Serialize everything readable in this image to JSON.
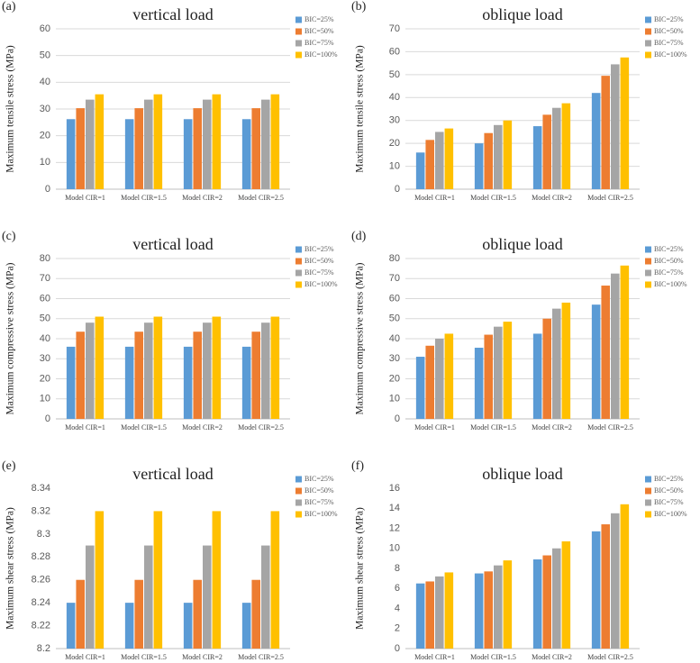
{
  "chart_data": [
    {
      "type": "bar",
      "panel_label": "(a)",
      "title": "vertical load",
      "y_label": "Maximum tensile stress (MPa)",
      "categories": [
        "Model CIR=1",
        "Model CIR=1.5",
        "Model CIR=2",
        "Model CIR=2.5"
      ],
      "series": [
        {
          "name": "BIC=25%",
          "color": "#5b9bd5",
          "values": [
            26.2,
            26.2,
            26.2,
            26.2
          ]
        },
        {
          "name": "BIC=50%",
          "color": "#ed7d31",
          "values": [
            30.3,
            30.3,
            30.3,
            30.3
          ]
        },
        {
          "name": "BIC=75%",
          "color": "#a5a5a5",
          "values": [
            33.5,
            33.5,
            33.5,
            33.5
          ]
        },
        {
          "name": "BIC=100%",
          "color": "#ffc000",
          "values": [
            35.5,
            35.5,
            35.5,
            35.5
          ]
        }
      ],
      "ylim": [
        0,
        60
      ],
      "yticks": [
        0,
        10,
        20,
        30,
        40,
        50,
        60
      ],
      "grid": true
    },
    {
      "type": "bar",
      "panel_label": "(b)",
      "title": "oblique load",
      "y_label": "Maximum tensile stress (MPa)",
      "categories": [
        "Model CIR=1",
        "Model CIR=1.5",
        "Model CIR=2",
        "Model CIR=2.5"
      ],
      "series": [
        {
          "name": "BIC=25%",
          "color": "#5b9bd5",
          "values": [
            16,
            20,
            27.5,
            42
          ]
        },
        {
          "name": "BIC=50%",
          "color": "#ed7d31",
          "values": [
            21.5,
            24.5,
            32.5,
            49.5
          ]
        },
        {
          "name": "BIC=75%",
          "color": "#a5a5a5",
          "values": [
            25,
            28,
            35.5,
            54.5
          ]
        },
        {
          "name": "BIC=100%",
          "color": "#ffc000",
          "values": [
            26.5,
            30,
            37.5,
            57.5
          ]
        }
      ],
      "ylim": [
        0,
        70
      ],
      "yticks": [
        0,
        10,
        20,
        30,
        40,
        50,
        60,
        70
      ],
      "grid": true
    },
    {
      "type": "bar",
      "panel_label": "(c)",
      "title": "vertical load",
      "y_label": "Maximum compressive  stress (MPa)",
      "categories": [
        "Model CIR=1",
        "Model CIR=1.5",
        "Model CIR=2",
        "Model CIR=2.5"
      ],
      "series": [
        {
          "name": "BIC=25%",
          "color": "#5b9bd5",
          "values": [
            36,
            36,
            36,
            36
          ]
        },
        {
          "name": "BIC=50%",
          "color": "#ed7d31",
          "values": [
            43.5,
            43.5,
            43.5,
            43.5
          ]
        },
        {
          "name": "BIC=75%",
          "color": "#a5a5a5",
          "values": [
            48,
            48,
            48,
            48
          ]
        },
        {
          "name": "BIC=100%",
          "color": "#ffc000",
          "values": [
            51,
            51,
            51,
            51
          ]
        }
      ],
      "ylim": [
        0,
        80
      ],
      "yticks": [
        0,
        10,
        20,
        30,
        40,
        50,
        60,
        70,
        80
      ],
      "grid": true
    },
    {
      "type": "bar",
      "panel_label": "(d)",
      "title": "oblique load",
      "y_label": "Maximum compressive  stress (MPa)",
      "categories": [
        "Model CIR=1",
        "Model CIR=1.5",
        "Model CIR=2",
        "Model CIR=2.5"
      ],
      "series": [
        {
          "name": "BIC=25%",
          "color": "#5b9bd5",
          "values": [
            31,
            35.5,
            42.5,
            57
          ]
        },
        {
          "name": "BIC=50%",
          "color": "#ed7d31",
          "values": [
            36.5,
            42,
            50,
            66.5
          ]
        },
        {
          "name": "BIC=75%",
          "color": "#a5a5a5",
          "values": [
            40,
            46,
            55,
            72.5
          ]
        },
        {
          "name": "BIC=100%",
          "color": "#ffc000",
          "values": [
            42.5,
            48.5,
            58,
            76.5
          ]
        }
      ],
      "ylim": [
        0,
        80
      ],
      "yticks": [
        0,
        10,
        20,
        30,
        40,
        50,
        60,
        70,
        80
      ],
      "grid": true
    },
    {
      "type": "bar",
      "panel_label": "(e)",
      "title": "vertical load",
      "y_label": "Maximum shear stress (MPa)",
      "categories": [
        "Model CIR=1",
        "Model CIR=1.5",
        "Model CIR=2",
        "Model CIR=2.5"
      ],
      "series": [
        {
          "name": "BIC=25%",
          "color": "#5b9bd5",
          "values": [
            8.24,
            8.24,
            8.24,
            8.24
          ]
        },
        {
          "name": "BIC=50%",
          "color": "#ed7d31",
          "values": [
            8.26,
            8.26,
            8.26,
            8.26
          ]
        },
        {
          "name": "BIC=75%",
          "color": "#a5a5a5",
          "values": [
            8.29,
            8.29,
            8.29,
            8.29
          ]
        },
        {
          "name": "BIC=100%",
          "color": "#ffc000",
          "values": [
            8.32,
            8.32,
            8.32,
            8.32
          ]
        }
      ],
      "ylim": [
        8.2,
        8.34
      ],
      "yticks": [
        8.2,
        8.22,
        8.24,
        8.26,
        8.28,
        8.3,
        8.32,
        8.34
      ],
      "grid": false
    },
    {
      "type": "bar",
      "panel_label": "(f)",
      "title": "oblique load",
      "y_label": "Maximum shear stress (MPa)",
      "categories": [
        "Model CIR=1",
        "Model CIR=1.5",
        "Model CIR=2",
        "Model CIR=2.5"
      ],
      "series": [
        {
          "name": "BIC=25%",
          "color": "#5b9bd5",
          "values": [
            6.5,
            7.5,
            8.9,
            11.7
          ]
        },
        {
          "name": "BIC=50%",
          "color": "#ed7d31",
          "values": [
            6.7,
            7.7,
            9.3,
            12.4
          ]
        },
        {
          "name": "BIC=75%",
          "color": "#a5a5a5",
          "values": [
            7.2,
            8.3,
            10.0,
            13.5
          ]
        },
        {
          "name": "BIC=100%",
          "color": "#ffc000",
          "values": [
            7.6,
            8.8,
            10.7,
            14.4
          ]
        }
      ],
      "ylim": [
        0,
        16
      ],
      "yticks": [
        0,
        2,
        4,
        6,
        8,
        10,
        12,
        14,
        16
      ],
      "grid": false
    }
  ]
}
